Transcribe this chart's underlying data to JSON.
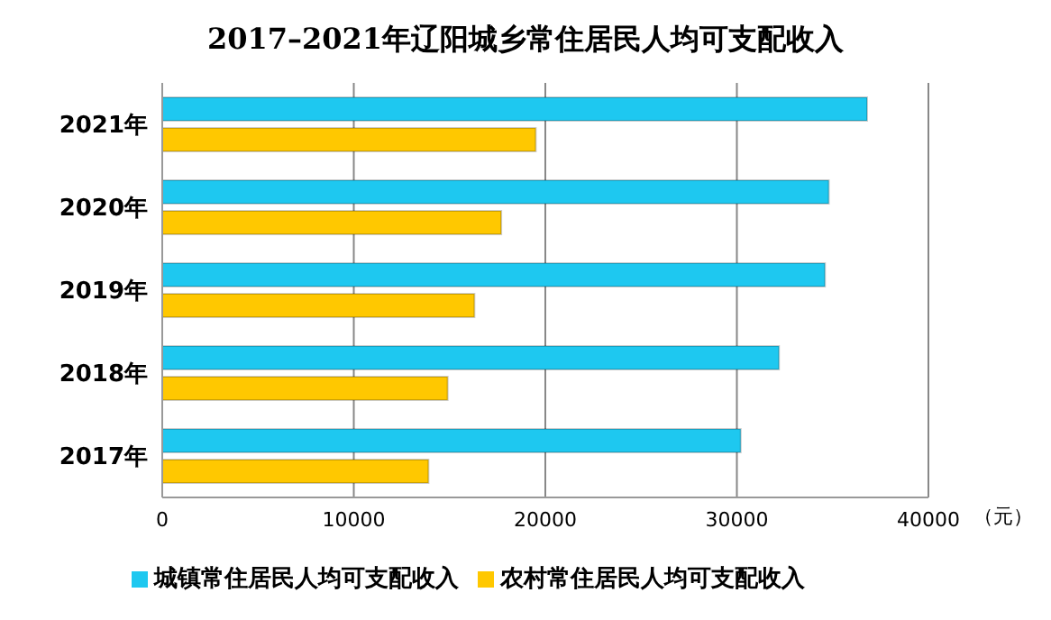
{
  "chart_data": {
    "type": "bar",
    "orientation": "horizontal",
    "title": "2017–2021年辽阳城乡常住居民人均可支配收入",
    "xlabel": "（元）",
    "categories": [
      "2021年",
      "2020年",
      "2019年",
      "2018年",
      "2017年"
    ],
    "series": [
      {
        "name": "城镇常住居民人均可支配收入",
        "color": "#1ec8f0",
        "values": [
          36800,
          34800,
          34600,
          32200,
          30200
        ]
      },
      {
        "name": "农村常住居民人均可支配收入",
        "color": "#ffc800",
        "values": [
          19500,
          17700,
          16300,
          14900,
          13900
        ]
      }
    ],
    "xlim": [
      0,
      40000
    ],
    "xticks": [
      0,
      10000,
      20000,
      30000,
      40000
    ],
    "grid": "x",
    "legend": "bottom"
  }
}
